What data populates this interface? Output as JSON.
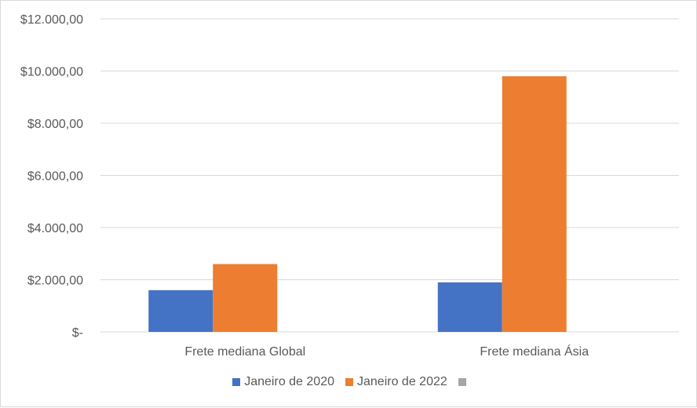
{
  "chart_data": {
    "type": "bar",
    "categories": [
      "Frete mediana Global",
      "Frete mediana Ásia"
    ],
    "series": [
      {
        "name": "Janeiro de 2020",
        "values": [
          1600,
          1900
        ],
        "color": "#4472c4"
      },
      {
        "name": "Janeiro de 2022",
        "values": [
          2600,
          9800
        ],
        "color": "#ed7d31"
      },
      {
        "name": "",
        "values": [
          null,
          null
        ],
        "color": "#a5a5a5"
      }
    ],
    "ylim": [
      0,
      12000
    ],
    "yticks": [
      0,
      2000,
      4000,
      6000,
      8000,
      10000,
      12000
    ],
    "ytick_labels": [
      "$-",
      "$2.000,00",
      "$4.000,00",
      "$6.000,00",
      "$8.000,00",
      "$10.000,00",
      "$12.000,00"
    ],
    "title": "",
    "xlabel": "",
    "ylabel": "",
    "grid": true,
    "legend_position": "bottom"
  }
}
